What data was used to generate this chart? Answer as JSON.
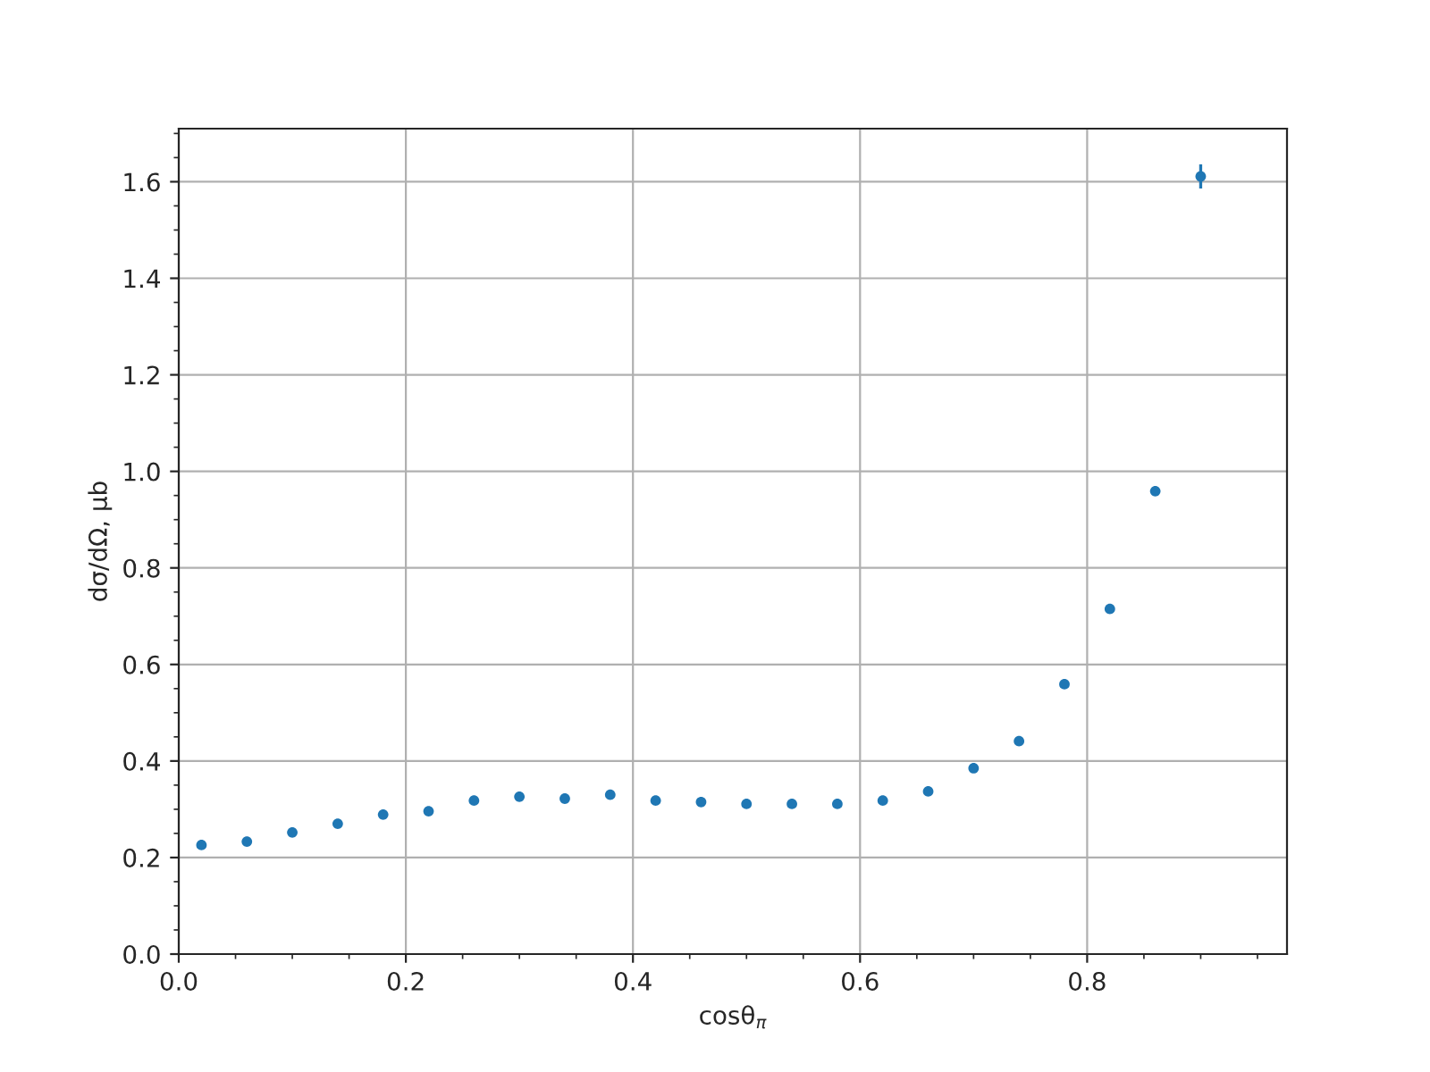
{
  "chart_data": {
    "type": "scatter",
    "xlabel": "cosθ$_{π}$",
    "ylabel": "dσ/dΩ, μb",
    "x": [
      0.02,
      0.06,
      0.1,
      0.14,
      0.18,
      0.22,
      0.26,
      0.3,
      0.34,
      0.38,
      0.42,
      0.46,
      0.5,
      0.54,
      0.58,
      0.62,
      0.66,
      0.7,
      0.74,
      0.78,
      0.82,
      0.86,
      0.9
    ],
    "series": [
      {
        "color": "#1f77b4",
        "values": [
          0.226,
          0.233,
          0.252,
          0.27,
          0.289,
          0.296,
          0.318,
          0.326,
          0.322,
          0.33,
          0.318,
          0.315,
          0.311,
          0.311,
          0.311,
          0.318,
          0.337,
          0.385,
          0.441,
          0.559,
          0.715,
          0.959,
          1.611
        ],
        "errors": [
          null,
          null,
          null,
          null,
          null,
          null,
          null,
          null,
          null,
          null,
          null,
          null,
          null,
          null,
          null,
          null,
          null,
          null,
          null,
          null,
          null,
          null,
          0.025
        ]
      }
    ],
    "xlim": [
      0,
      0.976
    ],
    "xticks": [
      {
        "value": 0,
        "label": "0.0"
      },
      0.2,
      0.4,
      0.6,
      0.8
    ],
    "ylim": [
      0,
      1.71
    ],
    "yticks": [
      {
        "value": 0,
        "label": "0.0"
      },
      0.2,
      0.4,
      0.6,
      0.8,
      {
        "value": 1,
        "label": "1.0"
      },
      1.2,
      1.4,
      1.6
    ],
    "grid": true,
    "marker": "circle"
  }
}
